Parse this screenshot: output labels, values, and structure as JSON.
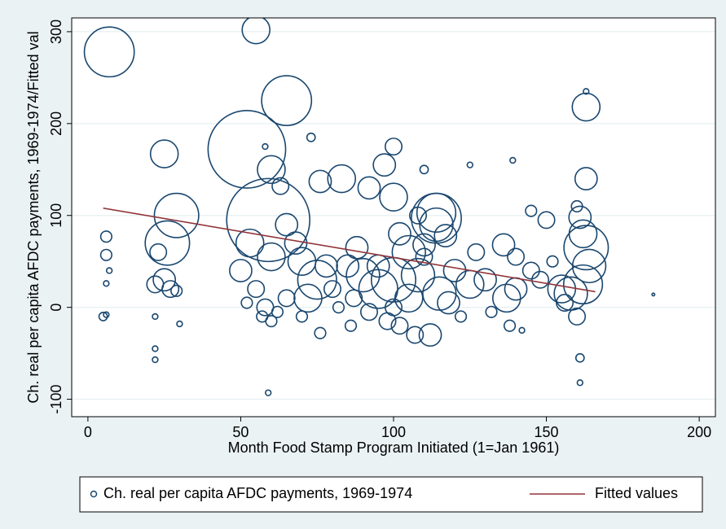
{
  "chart_data": {
    "type": "scatter",
    "xlabel": "Month Food Stamp Program Initiated (1=Jan 1961)",
    "ylabel": "Ch. real per capita AFDC payments, 1969-1974/Fitted val",
    "xlim": [
      -5.3,
      205.3
    ],
    "ylim": [
      -119,
      315
    ],
    "xticks": [
      0,
      50,
      100,
      150,
      200
    ],
    "yticks": [
      -100,
      0,
      100,
      200,
      300
    ],
    "grid": true,
    "series": [
      {
        "name": "Ch. real per capita AFDC payments, 1969-1974",
        "type": "scatter",
        "color": "#1a476f",
        "x": [
          7,
          55,
          65,
          52,
          59,
          25,
          29,
          26,
          163,
          163,
          100,
          114,
          114,
          114,
          76,
          83,
          97,
          100,
          60,
          63,
          92,
          105,
          110,
          117,
          136,
          140,
          163,
          162,
          161,
          164,
          53,
          50,
          75,
          78,
          72,
          90,
          95,
          100,
          105,
          108,
          115,
          120,
          125,
          130,
          137,
          140,
          148,
          155,
          158,
          162,
          150,
          65,
          68,
          60,
          70,
          85,
          88,
          102,
          108,
          112,
          107,
          98,
          86,
          57,
          60,
          22,
          23,
          25,
          27,
          29,
          5,
          6,
          6,
          6,
          6,
          7,
          22,
          22,
          22,
          30,
          52,
          55,
          58,
          62,
          65,
          70,
          76,
          80,
          82,
          87,
          92,
          95,
          100,
          102,
          110,
          118,
          122,
          127,
          132,
          138,
          142,
          145,
          152,
          156,
          160,
          161,
          161,
          185,
          59,
          160,
          139,
          163,
          58,
          73,
          110,
          125,
          145
        ],
        "values": [
          278,
          302,
          225,
          172,
          95,
          167,
          100,
          70,
          218,
          140,
          120,
          97,
          90,
          103,
          137,
          140,
          155,
          175,
          150,
          132,
          130,
          60,
          68,
          78,
          68,
          55,
          65,
          80,
          98,
          45,
          70,
          40,
          30,
          45,
          10,
          35,
          20,
          30,
          10,
          35,
          15,
          40,
          25,
          30,
          10,
          20,
          30,
          20,
          15,
          25,
          95,
          90,
          70,
          55,
          50,
          45,
          65,
          80,
          100,
          -30,
          -30,
          -15,
          -20,
          -10,
          -15,
          25,
          60,
          30,
          20,
          18,
          -10,
          -8,
          77,
          57,
          26,
          40,
          -10,
          -45,
          -57,
          -18,
          5,
          20,
          0,
          -5,
          10,
          -10,
          -28,
          20,
          0,
          10,
          -5,
          45,
          0,
          -20,
          55,
          5,
          -10,
          60,
          -5,
          -20,
          -25,
          40,
          50,
          5,
          -10,
          -55,
          -82,
          14,
          -93,
          110,
          160,
          235,
          175,
          185,
          150,
          155,
          105
        ],
        "sizes": [
          9,
          5,
          9,
          14,
          15,
          5,
          8,
          8,
          5,
          4,
          5,
          9,
          6,
          7,
          4,
          5,
          4,
          3,
          5,
          3,
          4,
          6,
          4,
          4,
          4,
          3,
          8,
          5,
          4,
          6,
          5,
          4,
          7,
          4,
          5,
          6,
          7,
          8,
          5,
          6,
          6,
          4,
          5,
          4,
          5,
          4,
          3,
          5,
          6,
          7,
          3,
          4,
          4,
          5,
          5,
          4,
          4,
          4,
          3,
          4,
          3,
          3,
          2,
          2,
          2,
          3,
          3,
          4,
          3,
          2,
          1.5,
          1,
          2,
          2,
          1,
          1,
          1,
          1,
          1,
          1,
          2,
          3,
          3,
          2,
          3,
          2,
          2,
          3,
          2,
          3,
          3,
          4,
          3,
          3,
          3,
          4,
          2,
          3,
          2,
          2,
          1,
          3,
          2,
          3,
          3,
          1.5,
          1,
          0.5,
          1,
          2,
          1,
          1,
          1,
          1.5,
          1.5,
          1,
          2
        ]
      },
      {
        "name": "Fitted values",
        "type": "line",
        "color": "#90353b",
        "x": [
          5,
          166
        ],
        "values": [
          108,
          17
        ]
      }
    ]
  }
}
